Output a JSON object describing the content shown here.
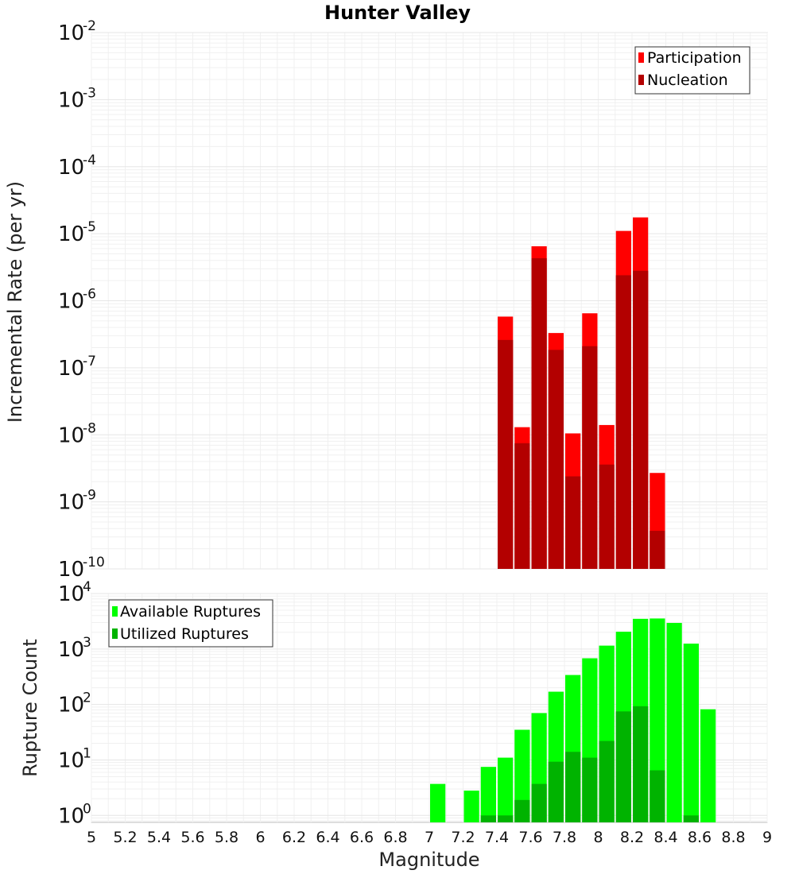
{
  "chart_data": [
    {
      "type": "bar",
      "title": "Hunter Valley",
      "ylabel": "Incremental Rate (per yr)",
      "xlabel": "",
      "xlim": [
        5,
        9
      ],
      "ylim": [
        1e-10,
        0.01
      ],
      "yscale": "log",
      "bar_width": 0.1,
      "grid": true,
      "legend": "top-right",
      "y_ticks": [
        {
          "base": "10",
          "exp": "-10"
        },
        {
          "base": "10",
          "exp": "-9"
        },
        {
          "base": "10",
          "exp": "-8"
        },
        {
          "base": "10",
          "exp": "-7"
        },
        {
          "base": "10",
          "exp": "-6"
        },
        {
          "base": "10",
          "exp": "-5"
        },
        {
          "base": "10",
          "exp": "-4"
        },
        {
          "base": "10",
          "exp": "-3"
        },
        {
          "base": "10",
          "exp": "-2"
        }
      ],
      "x": [
        7.45,
        7.55,
        7.65,
        7.75,
        7.85,
        7.95,
        8.05,
        8.15,
        8.25,
        8.35
      ],
      "series": [
        {
          "name": "Participation",
          "color": "#ff0000",
          "values": [
            5.8e-07,
            1.3e-08,
            6.5e-06,
            3.3e-07,
            1.05e-08,
            6.5e-07,
            1.4e-08,
            1.1e-05,
            1.75e-05,
            2.7e-09
          ]
        },
        {
          "name": "Nucleation",
          "color": "#b30000",
          "values": [
            2.6e-07,
            7.5e-09,
            4.3e-06,
            1.85e-07,
            2.4e-09,
            2.1e-07,
            3.6e-09,
            2.4e-06,
            2.8e-06,
            3.7e-10
          ]
        }
      ]
    },
    {
      "type": "bar",
      "title": "",
      "ylabel": "Rupture Count",
      "xlabel": "Magnitude",
      "xlim": [
        5,
        9
      ],
      "ylim": [
        0.75,
        10000
      ],
      "yscale": "log",
      "bar_width": 0.1,
      "grid": true,
      "legend": "top-left",
      "y_ticks": [
        {
          "value": 1,
          "base": "10",
          "exp": "0"
        },
        {
          "value": 10,
          "base": "10",
          "exp": "1"
        },
        {
          "value": 100,
          "base": "10",
          "exp": "2"
        },
        {
          "value": 1000,
          "base": "10",
          "exp": "3"
        },
        {
          "value": 10000,
          "base": "10",
          "exp": "4"
        }
      ],
      "x_ticks": [
        "5",
        "5.2",
        "5.4",
        "5.6",
        "5.8",
        "6",
        "6.2",
        "6.4",
        "6.6",
        "6.8",
        "7",
        "7.2",
        "7.4",
        "7.6",
        "7.8",
        "8",
        "8.2",
        "8.4",
        "8.6",
        "8.8",
        "9"
      ],
      "x": [
        7.05,
        7.25,
        7.35,
        7.45,
        7.55,
        7.65,
        7.75,
        7.85,
        7.95,
        8.05,
        8.15,
        8.25,
        8.35,
        8.45,
        8.55,
        8.65
      ],
      "series": [
        {
          "name": "Available Ruptures",
          "color": "#00ff00",
          "values": [
            3.7,
            2.8,
            7.5,
            11,
            35,
            70,
            170,
            340,
            680,
            1150,
            2050,
            3500,
            3550,
            2950,
            1250,
            82
          ]
        },
        {
          "name": "Utilized Ruptures",
          "color": "#00b300",
          "values": [
            0,
            0,
            1,
            1,
            1.9,
            3.7,
            9.3,
            14,
            11,
            22,
            75,
            93,
            6.5,
            0,
            1,
            0
          ]
        }
      ]
    }
  ]
}
